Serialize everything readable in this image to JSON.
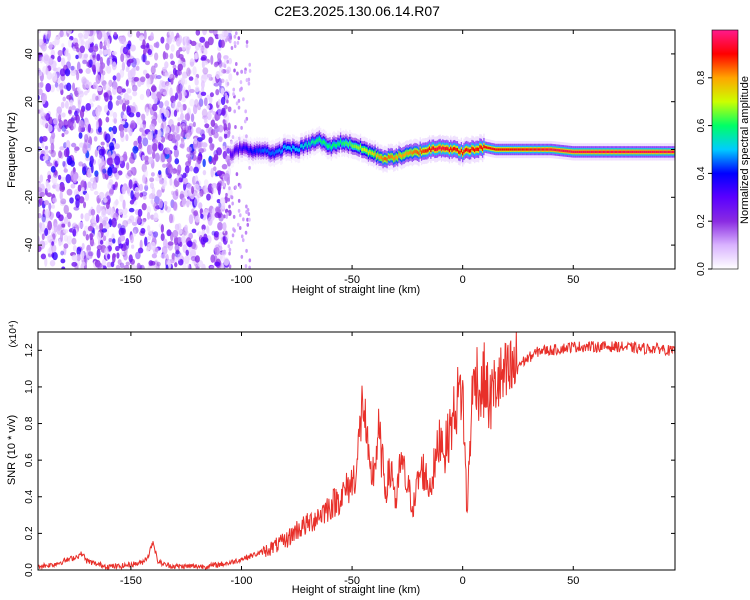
{
  "title": "C2E3.2025.130.06.14.R07",
  "chart_data": [
    {
      "type": "heatmap",
      "xlabel": "Height of straight line (km)",
      "ylabel": "Frequency (Hz)",
      "xlim": [
        -192,
        96
      ],
      "ylim": [
        -50,
        50
      ],
      "xticks": [
        -150,
        -100,
        -50,
        0,
        50
      ],
      "xtick_labels": [
        "-150",
        "-100",
        "-50",
        "0",
        "50"
      ],
      "yticks": [
        -40,
        -20,
        0,
        20,
        40
      ],
      "ytick_labels": [
        "-40",
        "-20",
        "0",
        "20",
        "40"
      ],
      "colorbar": {
        "label": "Normalized spectral amplitude",
        "range": [
          0,
          1
        ],
        "ticks": [
          0.0,
          0.2,
          0.4,
          0.6,
          0.8
        ],
        "tick_labels": [
          "0.0",
          "0.2",
          "0.4",
          "0.6",
          "0.8"
        ],
        "colors": [
          "#ffffff",
          "#d9b3ff",
          "#8a2be2",
          "#5a00ff",
          "#0000ff",
          "#00ccff",
          "#00ff66",
          "#ccff00",
          "#ffa500",
          "#ff0000",
          "#ff1a8c"
        ]
      },
      "ridge": {
        "x": [
          -105,
          -100,
          -95,
          -90,
          -85,
          -80,
          -75,
          -70,
          -65,
          -60,
          -55,
          -50,
          -45,
          -40,
          -35,
          -30,
          -25,
          -20,
          -15,
          -10,
          -5,
          0,
          5,
          10,
          15,
          20,
          30,
          40,
          50,
          60,
          70,
          80,
          90,
          96
        ],
        "y": [
          -2,
          1,
          -1,
          0,
          -2,
          1,
          0,
          2,
          4,
          1,
          3,
          2,
          0,
          -2,
          -4,
          -3,
          -2,
          -1,
          0,
          1,
          0,
          -1,
          0,
          1,
          0,
          0,
          0,
          0,
          -1,
          -1,
          -1,
          -1,
          -1,
          -1
        ],
        "amplitude": [
          0.3,
          0.35,
          0.4,
          0.45,
          0.45,
          0.5,
          0.5,
          0.55,
          0.6,
          0.6,
          0.6,
          0.65,
          0.7,
          0.75,
          0.85,
          0.8,
          0.8,
          0.85,
          0.9,
          0.95,
          0.9,
          0.9,
          0.9,
          0.9,
          0.9,
          0.9,
          0.92,
          0.95,
          0.95,
          0.95,
          0.95,
          0.95,
          0.95,
          0.95
        ]
      },
      "noise_region": {
        "x": [
          -192,
          -105
        ],
        "y": [
          -50,
          50
        ]
      }
    },
    {
      "type": "line",
      "xlabel": "Height of straight line (km)",
      "ylabel": "SNR (10 * v/v)",
      "scale_label": "(x10⁴)",
      "xlim": [
        -192,
        96
      ],
      "ylim": [
        0,
        1.3
      ],
      "xticks": [
        -150,
        -100,
        -50,
        0,
        50
      ],
      "xtick_labels": [
        "-150",
        "-100",
        "-50",
        "0",
        "50"
      ],
      "yticks": [
        0.0,
        0.2,
        0.4,
        0.6,
        0.8,
        1.0,
        1.2
      ],
      "ytick_labels": [
        "0.0",
        "0.2",
        "0.4",
        "0.6",
        "0.8",
        "1.0",
        "1.2"
      ],
      "color": "#e8302a",
      "x": [
        -192,
        -185,
        -180,
        -175,
        -172,
        -170,
        -165,
        -160,
        -155,
        -150,
        -145,
        -142,
        -140,
        -138,
        -135,
        -130,
        -125,
        -120,
        -115,
        -110,
        -105,
        -100,
        -95,
        -90,
        -85,
        -80,
        -75,
        -70,
        -65,
        -60,
        -55,
        -50,
        -48,
        -45,
        -42,
        -40,
        -38,
        -35,
        -32,
        -30,
        -28,
        -25,
        -22,
        -20,
        -18,
        -15,
        -12,
        -10,
        -8,
        -5,
        -2,
        0,
        2,
        4,
        6,
        8,
        10,
        12,
        15,
        20,
        25,
        30,
        35,
        40,
        50,
        60,
        70,
        80,
        90,
        96
      ],
      "y": [
        0.02,
        0.03,
        0.05,
        0.07,
        0.09,
        0.05,
        0.03,
        0.02,
        0.02,
        0.03,
        0.04,
        0.08,
        0.16,
        0.05,
        0.03,
        0.02,
        0.02,
        0.02,
        0.02,
        0.03,
        0.04,
        0.06,
        0.08,
        0.1,
        0.13,
        0.16,
        0.22,
        0.25,
        0.3,
        0.35,
        0.4,
        0.48,
        0.55,
        0.95,
        0.5,
        0.55,
        0.75,
        0.45,
        0.55,
        0.35,
        0.6,
        0.45,
        0.35,
        0.5,
        0.55,
        0.45,
        0.6,
        0.75,
        0.65,
        0.8,
        0.95,
        0.98,
        0.3,
        0.9,
        1.1,
        0.95,
        1.05,
        0.9,
        1.02,
        1.05,
        1.12,
        1.16,
        1.2,
        1.2,
        1.22,
        1.22,
        1.22,
        1.21,
        1.21,
        1.19
      ]
    }
  ]
}
